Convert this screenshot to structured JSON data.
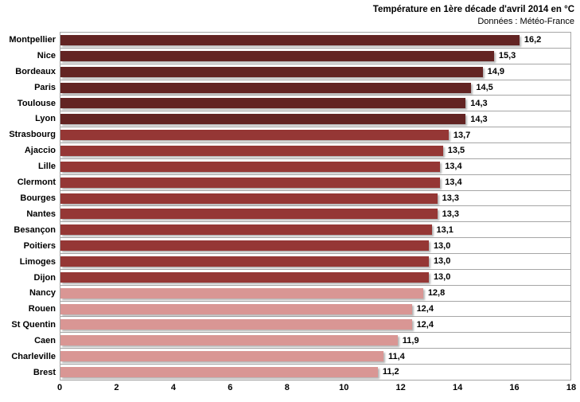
{
  "chart_data": {
    "type": "bar",
    "orientation": "horizontal",
    "title": "Température en 1ère décade  d'avril  2014 en °C",
    "subtitle": "Données : Météo-France",
    "categories": [
      "Montpellier",
      "Nice",
      "Bordeaux",
      "Paris",
      "Toulouse",
      "Lyon",
      "Strasbourg",
      "Ajaccio",
      "Lille",
      "Clermont",
      "Bourges",
      "Nantes",
      "Besançon",
      "Poitiers",
      "Limoges",
      "Dijon",
      "Nancy",
      "Rouen",
      "St Quentin",
      "Caen",
      "Charleville",
      "Brest"
    ],
    "values": [
      16.2,
      15.3,
      14.9,
      14.5,
      14.3,
      14.3,
      13.7,
      13.5,
      13.4,
      13.4,
      13.3,
      13.3,
      13.1,
      13.0,
      13.0,
      13.0,
      12.8,
      12.4,
      12.4,
      11.9,
      11.4,
      11.2
    ],
    "value_labels": [
      "16,2",
      "15,3",
      "14,9",
      "14,5",
      "14,3",
      "14,3",
      "13,7",
      "13,5",
      "13,4",
      "13,4",
      "13,3",
      "13,3",
      "13,1",
      "13,0",
      "13,0",
      "13,0",
      "12,8",
      "12,4",
      "12,4",
      "11,9",
      "11,4",
      "11,2"
    ],
    "bar_colors": [
      "#632423",
      "#632423",
      "#632423",
      "#632423",
      "#632423",
      "#632423",
      "#953735",
      "#953735",
      "#953735",
      "#953735",
      "#953735",
      "#953735",
      "#953735",
      "#953735",
      "#953735",
      "#953735",
      "#d99694",
      "#d99694",
      "#d99694",
      "#d99694",
      "#d99694",
      "#d99694"
    ],
    "color_legend": {
      "high": "#632423",
      "mid": "#953735",
      "low": "#d99694"
    },
    "gridline_color": "#a6a6a6",
    "xlabel": "",
    "ylabel": "",
    "xlim": [
      0,
      18
    ],
    "xticks": [
      0,
      2,
      4,
      6,
      8,
      10,
      12,
      14,
      16,
      18
    ],
    "xtick_labels": [
      "0",
      "2",
      "4",
      "6",
      "8",
      "10",
      "12",
      "14",
      "16",
      "18"
    ],
    "grid": "category-separators",
    "legend": "none"
  }
}
